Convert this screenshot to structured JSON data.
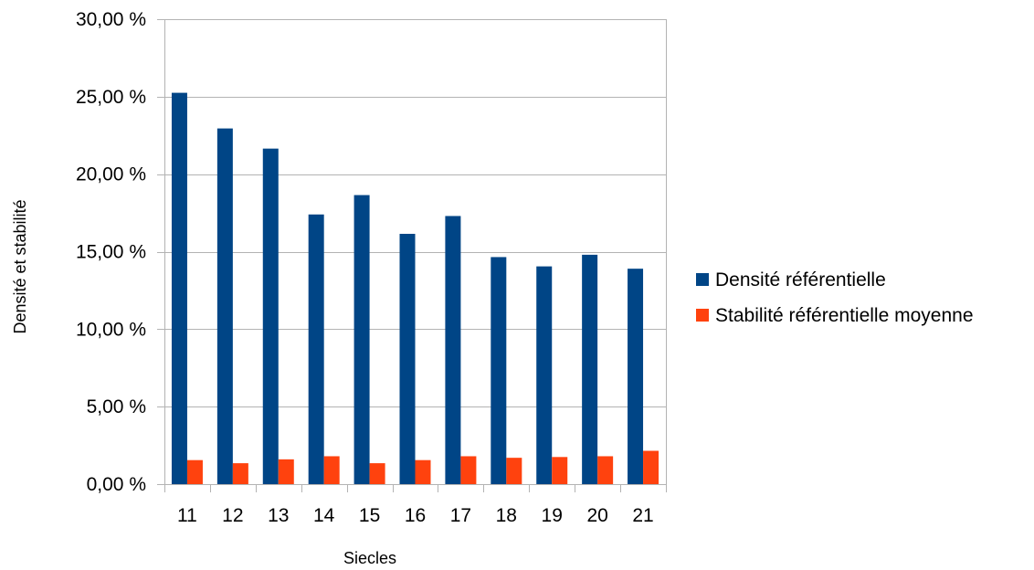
{
  "chart_data": {
    "type": "bar",
    "categories": [
      "11",
      "12",
      "13",
      "14",
      "15",
      "16",
      "17",
      "18",
      "19",
      "20",
      "21"
    ],
    "series": [
      {
        "name": "Densité référentielle",
        "color": "#004586",
        "values": [
          25.25,
          22.95,
          21.65,
          17.4,
          18.65,
          16.15,
          17.3,
          14.65,
          14.05,
          14.8,
          13.9
        ]
      },
      {
        "name": "Stabilité référentielle moyenne",
        "color": "#ff420e",
        "values": [
          1.55,
          1.35,
          1.6,
          1.8,
          1.35,
          1.55,
          1.8,
          1.7,
          1.75,
          1.8,
          2.15
        ]
      }
    ],
    "xlabel": "Siecles",
    "ylabel": "Densité et stabilité",
    "ylim": [
      0,
      30
    ],
    "yticks": [
      "0,00 %",
      "5,00 %",
      "10,00 %",
      "15,00 %",
      "20,00 %",
      "25,00 %",
      "30,00 %"
    ],
    "ytick_values": [
      0,
      5,
      10,
      15,
      20,
      25,
      30
    ],
    "grid": true,
    "legend_position": "right"
  }
}
